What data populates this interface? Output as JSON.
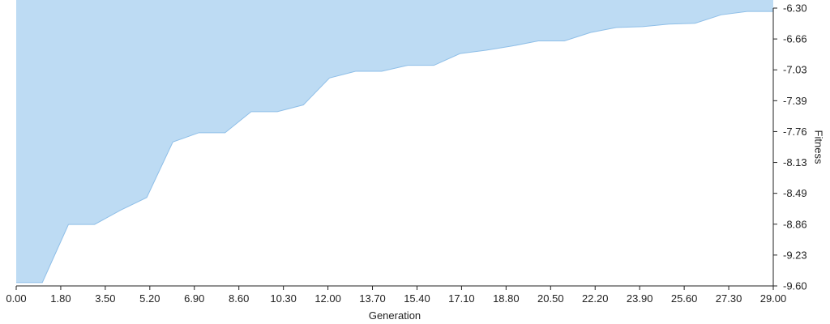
{
  "chart_data": {
    "type": "area",
    "title": "",
    "xlabel": "Generation",
    "ylabel": "Fitness",
    "xlim": [
      0,
      29
    ],
    "ylim": [
      -9.6,
      -6.3
    ],
    "x_ticks": [
      "0.00",
      "1.80",
      "3.50",
      "5.20",
      "6.90",
      "8.60",
      "10.30",
      "12.00",
      "13.70",
      "15.40",
      "17.10",
      "18.80",
      "20.50",
      "22.20",
      "23.90",
      "25.60",
      "27.30",
      "29.00"
    ],
    "y_ticks": [
      "-6.30",
      "-6.66",
      "-7.03",
      "-7.39",
      "-7.76",
      "-8.13",
      "-8.49",
      "-8.86",
      "-9.23",
      "-9.60"
    ],
    "fill_direction": "above-line",
    "grid": false,
    "legend": "none",
    "series": [
      {
        "name": "Fitness",
        "x": [
          0,
          1,
          2,
          3,
          4,
          5,
          6,
          7,
          8,
          9,
          10,
          11,
          12,
          13,
          14,
          15,
          16,
          17,
          18,
          19,
          20,
          21,
          22,
          23,
          24,
          25,
          26,
          27,
          28,
          29
        ],
        "values": [
          -9.56,
          -9.56,
          -8.87,
          -8.87,
          -8.7,
          -8.55,
          -7.89,
          -7.78,
          -7.78,
          -7.53,
          -7.53,
          -7.45,
          -7.13,
          -7.05,
          -7.05,
          -6.98,
          -6.98,
          -6.84,
          -6.8,
          -6.75,
          -6.69,
          -6.69,
          -6.59,
          -6.53,
          -6.52,
          -6.49,
          -6.48,
          -6.38,
          -6.34,
          -6.34
        ]
      }
    ]
  },
  "colors": {
    "area_fill": "#bddbf3",
    "area_stroke": "#8fbfe8",
    "axis": "#222222",
    "text": "#222222"
  }
}
